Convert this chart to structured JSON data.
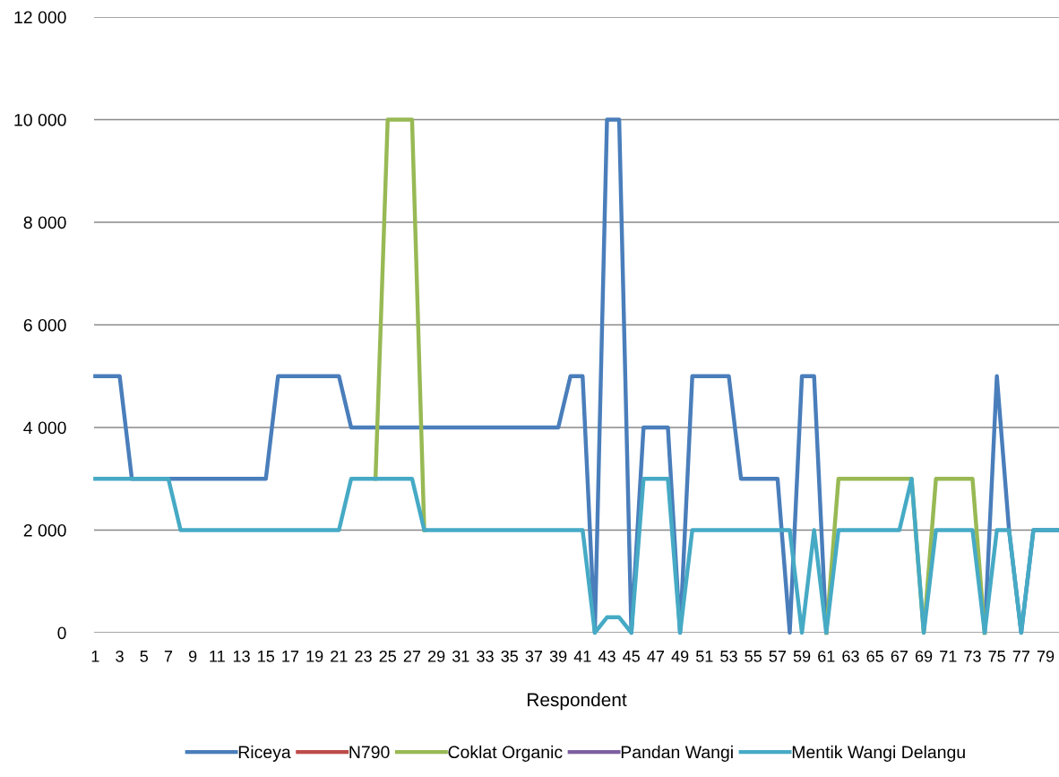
{
  "chart_data": {
    "type": "line",
    "xlabel": "Respondent",
    "categories": [
      "1",
      null,
      "3",
      null,
      "5",
      null,
      "7",
      null,
      "9",
      null,
      "11",
      null,
      "13",
      null,
      "15",
      null,
      "17",
      null,
      "19",
      null,
      "21",
      null,
      "23",
      null,
      "25",
      null,
      "27",
      null,
      "29",
      null,
      "31",
      null,
      "33",
      null,
      "35",
      null,
      "37",
      null,
      "39",
      null,
      "41",
      null,
      "43",
      null,
      "45",
      null,
      "47",
      null,
      "49",
      null,
      "51",
      null,
      "53",
      null,
      "55",
      null,
      "57",
      null,
      "59",
      null,
      "61",
      null,
      "63",
      null,
      "65",
      null,
      "67",
      null,
      "69",
      null,
      "71",
      null,
      "73",
      null,
      "75",
      null,
      "77",
      null,
      "79",
      null
    ],
    "series": [
      {
        "name": "Riceya",
        "color": "#4a7ebb",
        "values": [
          5000,
          5000,
          5000,
          3000,
          3000,
          3000,
          3000,
          3000,
          3000,
          3000,
          3000,
          3000,
          3000,
          3000,
          3000,
          5000,
          5000,
          5000,
          5000,
          5000,
          5000,
          4000,
          4000,
          4000,
          4000,
          4000,
          4000,
          4000,
          4000,
          4000,
          4000,
          4000,
          4000,
          4000,
          4000,
          4000,
          4000,
          4000,
          4000,
          5000,
          5000,
          0,
          10000,
          10000,
          0,
          4000,
          4000,
          4000,
          0,
          5000,
          5000,
          5000,
          5000,
          3000,
          3000,
          3000,
          3000,
          0,
          5000,
          5000,
          0,
          null,
          null,
          null,
          null,
          null,
          null,
          null,
          null,
          null,
          null,
          null,
          null,
          0,
          5000,
          2000,
          0,
          2000,
          2000,
          2000
        ]
      },
      {
        "name": "N790",
        "color": "#be4b48",
        "values": [
          null,
          null,
          null,
          null,
          null,
          null,
          null,
          null,
          null,
          null,
          null,
          null,
          null,
          null,
          null,
          null,
          null,
          null,
          null,
          null,
          null,
          null,
          null,
          null,
          null,
          null,
          null,
          null,
          null,
          null,
          null,
          null,
          null,
          null,
          null,
          null,
          null,
          null,
          null,
          null,
          null,
          null,
          null,
          null,
          null,
          null,
          null,
          null,
          null,
          null,
          null,
          null,
          null,
          null,
          null,
          null,
          null,
          null,
          null,
          null,
          null,
          null,
          null,
          null,
          null,
          null,
          null,
          null,
          null,
          null,
          null,
          null,
          null,
          null,
          null,
          null,
          null,
          null,
          null,
          null
        ]
      },
      {
        "name": "Coklat Organic",
        "color": "#98b954",
        "values": [
          null,
          null,
          null,
          null,
          null,
          null,
          null,
          null,
          null,
          null,
          null,
          null,
          null,
          null,
          null,
          null,
          null,
          null,
          null,
          null,
          null,
          null,
          null,
          3000,
          10000,
          10000,
          10000,
          2000,
          null,
          null,
          null,
          null,
          null,
          null,
          null,
          null,
          null,
          null,
          null,
          null,
          null,
          null,
          null,
          null,
          null,
          null,
          null,
          null,
          null,
          null,
          null,
          null,
          null,
          null,
          null,
          null,
          null,
          null,
          null,
          null,
          0,
          3000,
          3000,
          3000,
          3000,
          3000,
          3000,
          3000,
          0,
          3000,
          3000,
          3000,
          3000,
          0,
          null,
          null,
          null,
          null,
          null,
          null
        ]
      },
      {
        "name": "Pandan Wangi",
        "color": "#7d60a0",
        "values": [
          null,
          null,
          null,
          null,
          null,
          null,
          null,
          null,
          null,
          null,
          null,
          null,
          null,
          null,
          null,
          null,
          null,
          null,
          null,
          null,
          null,
          null,
          null,
          null,
          null,
          null,
          null,
          null,
          null,
          null,
          null,
          null,
          null,
          null,
          null,
          null,
          null,
          null,
          null,
          null,
          null,
          null,
          null,
          null,
          null,
          null,
          null,
          null,
          null,
          null,
          null,
          null,
          null,
          null,
          null,
          null,
          null,
          null,
          null,
          null,
          null,
          null,
          null,
          null,
          null,
          null,
          null,
          null,
          null,
          null,
          null,
          null,
          null,
          null,
          null,
          null,
          null,
          null,
          null,
          null
        ]
      },
      {
        "name": "Mentik Wangi Delangu",
        "color": "#46aac5",
        "values": [
          3000,
          3000,
          3000,
          3000,
          3000,
          3000,
          3000,
          2000,
          2000,
          2000,
          2000,
          2000,
          2000,
          2000,
          2000,
          2000,
          2000,
          2000,
          2000,
          2000,
          2000,
          3000,
          3000,
          3000,
          3000,
          3000,
          3000,
          2000,
          2000,
          2000,
          2000,
          2000,
          2000,
          2000,
          2000,
          2000,
          2000,
          2000,
          2000,
          2000,
          2000,
          0,
          300,
          300,
          0,
          3000,
          3000,
          3000,
          0,
          2000,
          2000,
          2000,
          2000,
          2000,
          2000,
          2000,
          2000,
          2000,
          0,
          2000,
          0,
          2000,
          2000,
          2000,
          2000,
          2000,
          2000,
          3000,
          0,
          2000,
          2000,
          2000,
          2000,
          0,
          2000,
          2000,
          0,
          2000,
          2000,
          2000
        ]
      }
    ],
    "ylim": [
      0,
      12000
    ],
    "yticks": [
      0,
      {
        "value": 2000,
        "label": "2 000"
      },
      {
        "value": 4000,
        "label": "4 000"
      },
      {
        "value": 6000,
        "label": "6 000"
      },
      {
        "value": 8000,
        "label": "8 000"
      },
      {
        "value": 10000,
        "label": "10 000"
      },
      {
        "value": 12000,
        "label": "12 000"
      }
    ],
    "grid": "y",
    "legend": "bottom",
    "marker": "none",
    "line_style": "solid"
  }
}
